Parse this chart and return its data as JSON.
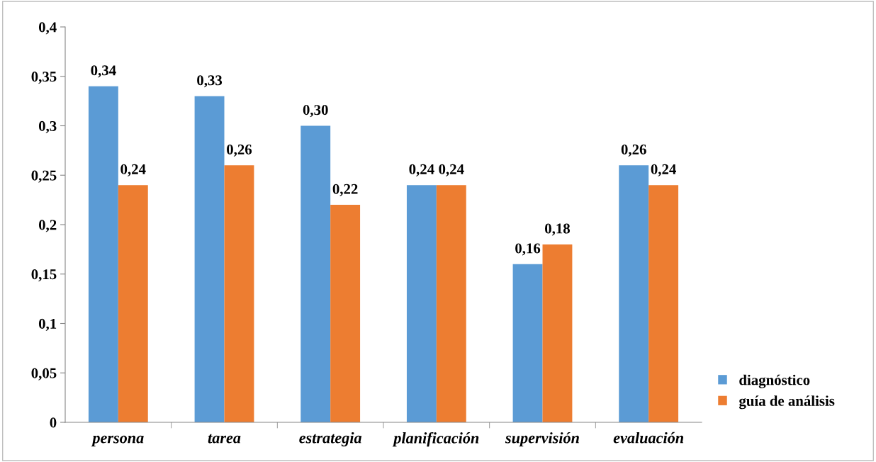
{
  "chart_data": {
    "type": "bar",
    "categories": [
      "persona",
      "tarea",
      "estrategia",
      "planificación",
      "supervisión",
      "evaluación"
    ],
    "series": [
      {
        "name": "diagnóstico",
        "color": "#5b9bd5",
        "values": [
          0.34,
          0.33,
          0.3,
          0.24,
          0.16,
          0.26
        ],
        "value_labels": [
          "0,34",
          "0,33",
          "0,30",
          "0,24",
          "0,16",
          "0,26"
        ]
      },
      {
        "name": "guía de análisis",
        "color": "#ed7d31",
        "values": [
          0.24,
          0.26,
          0.22,
          0.24,
          0.18,
          0.24
        ],
        "value_labels": [
          "0,24",
          "0,26",
          "0,22",
          "0,24",
          "0,18",
          "0,24"
        ]
      }
    ],
    "ylim": [
      0,
      0.4
    ],
    "yticks": [
      0,
      {
        "value": 0.05,
        "label": "0,05"
      },
      {
        "value": 0.1,
        "label": "0,1"
      },
      {
        "value": 0.15,
        "label": "0,15"
      },
      {
        "value": 0.2,
        "label": "0,2"
      },
      {
        "value": 0.25,
        "label": "0,25"
      },
      {
        "value": 0.3,
        "label": "0,3"
      },
      {
        "value": 0.35,
        "label": "0,35"
      },
      {
        "value": 0.4,
        "label": "0,4"
      }
    ],
    "grid": false,
    "legend": "bottom right"
  }
}
